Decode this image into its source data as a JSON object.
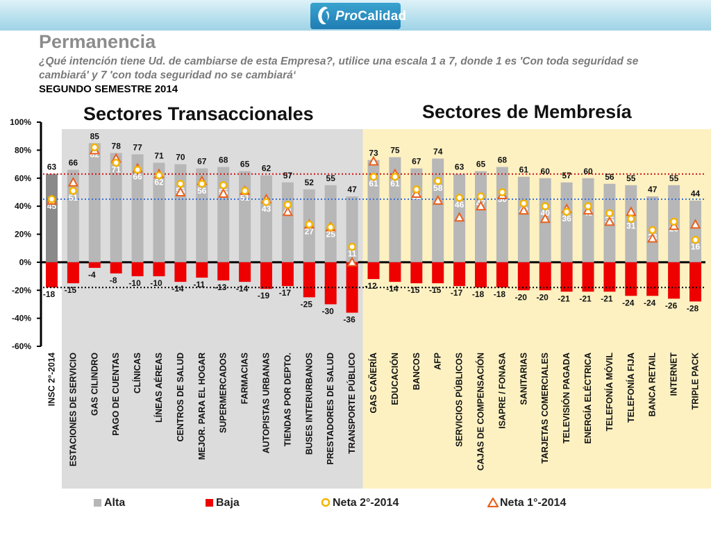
{
  "header": {
    "logo_text_pro": "Pro",
    "logo_text_calidad": "Calidad",
    "title": "Permanencia",
    "subtitle": "¿Qué intención tiene Ud. de cambiarse de esta Empresa?, utilice una escala 1 a 7, donde 1 es 'Con toda seguridad se cambiará' y 7 'con toda seguridad no se cambiará‘",
    "period": "SEGUNDO SEMESTRE 2014"
  },
  "colors": {
    "alta": "#b7b7b7",
    "alta_insc": "#8a8a8a",
    "baja": "#ee0000",
    "neta2": "#f5b400",
    "neta1": "#e8601c",
    "transaccional_bg": "#dcdcdc",
    "membresia_bg": "#fdf1c2",
    "ref_red": "#d01010",
    "ref_blue": "#3a6ed6"
  },
  "chart_data": {
    "type": "bar",
    "section_labels": [
      "Sectores Transaccionales",
      "Sectores de Membresía"
    ],
    "categories": [
      "INSC 2°-2014",
      "ESTACIONES DE SERVICIO",
      "GAS CILINDRO",
      "PAGO DE CUENTAS",
      "CLÍNICAS",
      "LÍNEAS AÉREAS",
      "CENTROS DE SALUD",
      "MEJOR. PARA EL HOGAR",
      "SUPERMERCADOS",
      "FARMACIAS",
      "AUTOPISTAS URBANAS",
      "TIENDAS POR DEPTO.",
      "BUSES INTERURBANOS",
      "PRESTADORES DE SALUD",
      "TRANSPORTE PÚBLICO",
      "GAS CAÑERÍA",
      "EDUCACIÓN",
      "BANCOS",
      "AFP",
      "SERVICIOS PÚBLICOS",
      "CAJAS DE COMPENSACIÓN",
      "ISAPRE / FONASA",
      "SANITARIAS",
      "TARJETAS COMERCIALES",
      "TELEVISIÓN PAGADA",
      "ENERGÍA ELÉCTRICA",
      "TELEFONÍA MÓVIL",
      "TELEFONÍA FIJA",
      "BANCA RETAIL",
      "INTERNET",
      "TRIPLE PACK"
    ],
    "transactional_range": [
      1,
      14
    ],
    "membership_range": [
      15,
      30
    ],
    "series": [
      {
        "name": "Alta",
        "values": [
          63,
          66,
          85,
          78,
          77,
          71,
          70,
          67,
          68,
          65,
          62,
          57,
          52,
          55,
          47,
          73,
          75,
          67,
          74,
          63,
          65,
          68,
          61,
          60,
          57,
          60,
          56,
          55,
          47,
          55,
          44
        ]
      },
      {
        "name": "Baja",
        "values": [
          -18,
          -15,
          -4,
          -8,
          -10,
          -10,
          -14,
          -11,
          -13,
          -14,
          -19,
          -17,
          -25,
          -30,
          -36,
          -12,
          -14,
          -15,
          -15,
          -17,
          -18,
          -18,
          -20,
          -20,
          -21,
          -21,
          -21,
          -24,
          -24,
          -26,
          -28
        ]
      },
      {
        "name": "Neta 2°-2014",
        "values": [
          45,
          51,
          82,
          71,
          66,
          62,
          56,
          56,
          55,
          51,
          43,
          41,
          27,
          25,
          11,
          61,
          61,
          52,
          58,
          46,
          47,
          50,
          42,
          40,
          36,
          40,
          35,
          31,
          23,
          29,
          16
        ]
      },
      {
        "name": "Neta 1°-2014",
        "values": [
          44,
          57,
          80,
          74,
          67,
          63,
          50,
          58,
          49,
          51,
          45,
          36,
          27,
          25,
          0,
          72,
          63,
          49,
          44,
          32,
          40,
          48,
          37,
          31,
          38,
          37,
          29,
          36,
          17,
          26,
          27
        ]
      }
    ],
    "reference_lines": [
      63,
      45,
      -18
    ],
    "ylim": [
      -60,
      100
    ],
    "yticks": [
      "100%",
      "80%",
      "60%",
      "40%",
      "20%",
      "0%",
      "-20%",
      "-40%",
      "-60%"
    ],
    "ytick_values": [
      100,
      80,
      60,
      40,
      20,
      0,
      -20,
      -40,
      -60
    ],
    "legend": [
      "Alta",
      "Baja",
      "Neta 2°-2014",
      "Neta 1°-2014"
    ],
    "legend_position": "bottom",
    "grid": false
  }
}
